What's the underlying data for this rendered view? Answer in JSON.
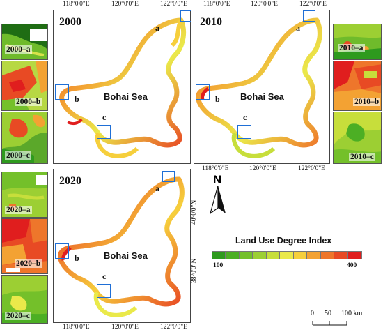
{
  "panels": [
    {
      "year": "2000",
      "sea": "Bohai Sea",
      "zooms": [
        "a",
        "b",
        "c"
      ]
    },
    {
      "year": "2010",
      "sea": "Bohai Sea",
      "zooms": [
        "a",
        "b",
        "c"
      ]
    },
    {
      "year": "2020",
      "sea": "Bohai Sea",
      "zooms": [
        "a",
        "b",
        "c"
      ]
    }
  ],
  "insets_left_2000": [
    "2000–a",
    "2000–b",
    "2000–c"
  ],
  "insets_right_2010": [
    "2010–a",
    "2010–b",
    "2010–c"
  ],
  "insets_left_2020": [
    "2020–a",
    "2020–b",
    "2020–c"
  ],
  "ticks": {
    "top": [
      "118°0'0\"E",
      "120°0'0\"E",
      "122°0'0\"E"
    ],
    "bottom": [
      "118°0'0\"E",
      "120°0'0\"E",
      "122°0'0\"E"
    ],
    "lat_right": [
      "40°0'0\"N",
      "38°0'0\"N"
    ]
  },
  "north_label": "N",
  "legend": {
    "title": "Land Use Degree Index",
    "min_label": "100",
    "max_label": "400",
    "colors": [
      "#2e9a1e",
      "#4caf24",
      "#74c02a",
      "#9ccf33",
      "#c7de3b",
      "#eae94a",
      "#f6cf3c",
      "#f3a233",
      "#ee762b",
      "#e84a24",
      "#e01e1e"
    ]
  },
  "scale": {
    "labels": [
      "0",
      "50",
      "100 km"
    ]
  }
}
